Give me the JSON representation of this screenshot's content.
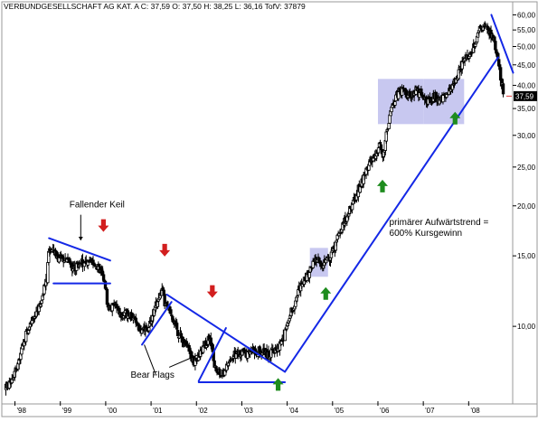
{
  "header": "VERBUNDGESELLSCHAFT AG KAT. A C: 37,59 O: 37,50 H: 38,25 L: 36,16 TofV: 37879",
  "colors": {
    "background": "#ffffff",
    "candle": "#000000",
    "trendline": "#1428e6",
    "box": "#c8c8f0",
    "arrow_up": "#1e8c1e",
    "arrow_down": "#d21e1e",
    "price_tag": "#000000"
  },
  "chart_data": {
    "type": "candlestick",
    "title": "VERBUNDGESELLSCHAFT AG KAT. A C: 37,59 O: 37,50 H: 38,25 L: 36,16 TofV: 37879",
    "scale": "log",
    "ylim": [
      6.5,
      64
    ],
    "xlim": [
      1997.75,
      2008.95
    ],
    "x_ticks": [
      {
        "x": 1998,
        "label": "'98"
      },
      {
        "x": 1999,
        "label": "'99"
      },
      {
        "x": 2000,
        "label": "'00"
      },
      {
        "x": 2001,
        "label": "'01"
      },
      {
        "x": 2002,
        "label": "'02"
      },
      {
        "x": 2003,
        "label": "'03"
      },
      {
        "x": 2004,
        "label": "'04"
      },
      {
        "x": 2005,
        "label": "'05"
      },
      {
        "x": 2006,
        "label": "'06"
      },
      {
        "x": 2007,
        "label": "'07"
      },
      {
        "x": 2008,
        "label": "'08"
      }
    ],
    "y_ticks": [
      {
        "y": 60,
        "label": "60,00"
      },
      {
        "y": 55,
        "label": "55,00"
      },
      {
        "y": 50,
        "label": "50,00"
      },
      {
        "y": 45,
        "label": "45,00"
      },
      {
        "y": 40,
        "label": "40,00"
      },
      {
        "y": 35,
        "label": "35,00"
      },
      {
        "y": 30,
        "label": "30,00"
      },
      {
        "y": 25,
        "label": "25,00"
      },
      {
        "y": 20,
        "label": "20,00"
      },
      {
        "y": 15,
        "label": "15,00"
      },
      {
        "y": 10,
        "label": "10,00"
      }
    ],
    "last_price": {
      "value": 37.59,
      "label": "37,59"
    },
    "weekly_close_path": [
      [
        1997.8,
        7.0
      ],
      [
        1997.95,
        7.4
      ],
      [
        1998.1,
        8.3
      ],
      [
        1998.25,
        9.6
      ],
      [
        1998.4,
        10.4
      ],
      [
        1998.55,
        11.3
      ],
      [
        1998.7,
        13.0
      ],
      [
        1998.75,
        15.6
      ],
      [
        1998.85,
        15.4
      ],
      [
        1999.0,
        14.7
      ],
      [
        1999.15,
        14.9
      ],
      [
        1999.3,
        13.9
      ],
      [
        1999.45,
        14.6
      ],
      [
        1999.6,
        14.3
      ],
      [
        1999.75,
        14.4
      ],
      [
        1999.9,
        13.7
      ],
      [
        2000.0,
        12.5
      ],
      [
        2000.05,
        11.1
      ],
      [
        2000.2,
        11.3
      ],
      [
        2000.35,
        10.6
      ],
      [
        2000.5,
        10.8
      ],
      [
        2000.65,
        10.3
      ],
      [
        2000.8,
        9.7
      ],
      [
        2000.95,
        9.9
      ],
      [
        2001.05,
        10.8
      ],
      [
        2001.15,
        11.6
      ],
      [
        2001.25,
        12.3
      ],
      [
        2001.3,
        11.4
      ],
      [
        2001.45,
        10.8
      ],
      [
        2001.6,
        9.6
      ],
      [
        2001.75,
        9.1
      ],
      [
        2001.85,
        8.6
      ],
      [
        2001.95,
        8.1
      ],
      [
        2002.05,
        8.4
      ],
      [
        2002.2,
        9.0
      ],
      [
        2002.3,
        9.4
      ],
      [
        2002.4,
        7.9
      ],
      [
        2002.55,
        7.5
      ],
      [
        2002.7,
        8.1
      ],
      [
        2002.85,
        8.5
      ],
      [
        2003.0,
        8.6
      ],
      [
        2003.15,
        8.5
      ],
      [
        2003.3,
        8.7
      ],
      [
        2003.45,
        8.6
      ],
      [
        2003.6,
        8.5
      ],
      [
        2003.75,
        8.8
      ],
      [
        2003.85,
        9.0
      ],
      [
        2003.95,
        9.5
      ],
      [
        2004.05,
        10.6
      ],
      [
        2004.15,
        11.4
      ],
      [
        2004.3,
        12.7
      ],
      [
        2004.45,
        13.4
      ],
      [
        2004.55,
        14.2
      ],
      [
        2004.65,
        14.6
      ],
      [
        2004.8,
        14.3
      ],
      [
        2004.95,
        14.9
      ],
      [
        2005.05,
        15.8
      ],
      [
        2005.2,
        17.5
      ],
      [
        2005.35,
        19.2
      ],
      [
        2005.5,
        21.0
      ],
      [
        2005.65,
        23.2
      ],
      [
        2005.8,
        25.5
      ],
      [
        2005.95,
        26.5
      ],
      [
        2006.05,
        28.6
      ],
      [
        2006.1,
        26.0
      ],
      [
        2006.2,
        31.2
      ],
      [
        2006.3,
        34.6
      ],
      [
        2006.4,
        38.0
      ],
      [
        2006.55,
        39.0
      ],
      [
        2006.7,
        37.5
      ],
      [
        2006.85,
        38.7
      ],
      [
        2007.0,
        38.0
      ],
      [
        2007.1,
        36.2
      ],
      [
        2007.25,
        37.6
      ],
      [
        2007.4,
        36.8
      ],
      [
        2007.55,
        38.2
      ],
      [
        2007.7,
        41.0
      ],
      [
        2007.8,
        44.0
      ],
      [
        2007.95,
        47.0
      ],
      [
        2008.05,
        48.0
      ],
      [
        2008.15,
        51.0
      ],
      [
        2008.25,
        55.5
      ],
      [
        2008.35,
        57.0
      ],
      [
        2008.45,
        54.5
      ],
      [
        2008.55,
        52.0
      ],
      [
        2008.65,
        47.0
      ],
      [
        2008.72,
        41.0
      ],
      [
        2008.78,
        37.59
      ]
    ],
    "trendlines": [
      {
        "name": "keil-oben",
        "points": [
          [
            1998.75,
            16.6
          ],
          [
            2000.1,
            14.6
          ]
        ]
      },
      {
        "name": "keil-unten",
        "points": [
          [
            1998.85,
            12.8
          ],
          [
            2000.1,
            12.8
          ]
        ]
      },
      {
        "name": "abwaertstrend",
        "points": [
          [
            2001.35,
            12.0
          ],
          [
            2003.95,
            7.7
          ]
        ]
      },
      {
        "name": "flag-1",
        "points": [
          [
            2000.8,
            9.0
          ],
          [
            2001.45,
            11.5
          ]
        ]
      },
      {
        "name": "flag-2",
        "points": [
          [
            2002.05,
            7.3
          ],
          [
            2002.65,
            9.9
          ]
        ]
      },
      {
        "name": "basis-2002",
        "points": [
          [
            2002.05,
            7.25
          ],
          [
            2003.95,
            7.25
          ]
        ]
      },
      {
        "name": "primaerer-aufwaertstrend",
        "points": [
          [
            2003.95,
            7.7
          ],
          [
            2008.65,
            47.0
          ]
        ]
      },
      {
        "name": "hoch-2008",
        "points": [
          [
            2008.5,
            60.0
          ],
          [
            2008.98,
            43.0
          ]
        ]
      }
    ],
    "boxes": [
      {
        "x": [
          2004.5,
          2004.9
        ],
        "y": [
          13.3,
          15.7
        ]
      },
      {
        "x": [
          2006.0,
          2007.0
        ],
        "y": [
          32.0,
          41.5
        ]
      },
      {
        "x": [
          2007.0,
          2007.9
        ],
        "y": [
          32.0,
          41.5
        ]
      }
    ],
    "arrows_down": [
      {
        "x": 1999.95,
        "y": 17.4
      },
      {
        "x": 2001.3,
        "y": 15.1
      },
      {
        "x": 2002.35,
        "y": 11.9
      }
    ],
    "arrows_up": [
      {
        "x": 2003.8,
        "y": 7.35
      },
      {
        "x": 2004.85,
        "y": 12.4
      },
      {
        "x": 2006.1,
        "y": 23.0
      },
      {
        "x": 2007.7,
        "y": 34.0
      }
    ],
    "annotations": {
      "keil_label": "Fallender Keil",
      "keil_label_at": {
        "x": 1999.2,
        "y": 19.8
      },
      "keil_pointer": [
        [
          1999.45,
          19.0
        ],
        [
          1999.45,
          16.4
        ]
      ],
      "flags_label": "Bear Flags",
      "flags_label_at": {
        "x": 2000.55,
        "y": 7.45
      },
      "flags_pointers": [
        [
          [
            2001.1,
            7.6
          ],
          [
            2000.85,
            9.0
          ]
        ],
        [
          [
            2001.4,
            7.9
          ],
          [
            2002.05,
            8.5
          ]
        ]
      ],
      "trend_label_line1": "primärer Aufwärtstrend =",
      "trend_label_line2": "600% Kursgewinn",
      "trend_label_at": {
        "x": 2006.25,
        "y": 17.9
      }
    }
  }
}
